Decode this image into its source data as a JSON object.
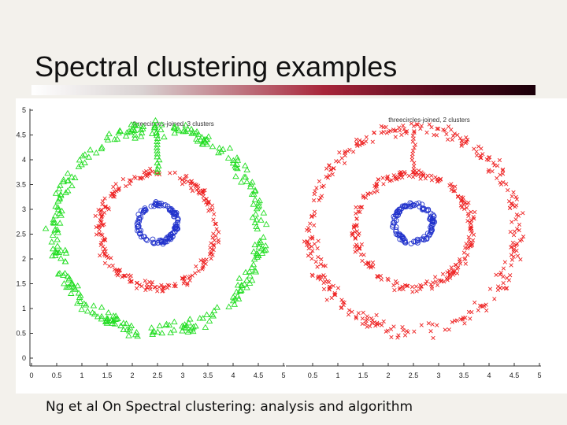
{
  "slide": {
    "title": "Spectral clustering examples",
    "caption": "Ng et al On Spectral clustering: analysis and algorithm"
  },
  "colors": {
    "green": "#22dd22",
    "red": "#ee2222",
    "blue": "#2233cc",
    "axis": "#333333"
  },
  "chart_data": [
    {
      "type": "scatter",
      "title": "threecircles-joined, 3 clusters",
      "xlim": [
        0,
        5
      ],
      "ylim": [
        0,
        5
      ],
      "x_ticks": [
        0,
        0.5,
        1,
        1.5,
        2,
        2.5,
        3,
        3.5,
        4,
        4.5,
        5
      ],
      "y_ticks": [
        0,
        0.5,
        1,
        1.5,
        2,
        2.5,
        3,
        3.5,
        4,
        4.5,
        5
      ],
      "x_tick_labels": [
        "0",
        "0.5",
        "1",
        "1.5",
        "2",
        "2.5",
        "3",
        "3.5",
        "4",
        "4.5",
        "5"
      ],
      "y_tick_labels": [
        "0",
        "0.5",
        "1",
        "1.5",
        "2",
        "2.5",
        "3",
        "3.5",
        "4",
        "4.5",
        "5"
      ],
      "series": [
        {
          "marker": "triangle",
          "color": "green",
          "shape": "ring",
          "center": [
            2.5,
            2.58
          ],
          "radius": 2.05,
          "points": 320
        },
        {
          "marker": "x",
          "color": "red",
          "shape": "ring",
          "center": [
            2.5,
            2.58
          ],
          "radius": 1.15,
          "points": 230
        },
        {
          "marker": "circle",
          "color": "blue",
          "shape": "ring",
          "center": [
            2.5,
            2.72
          ],
          "radius": 0.38,
          "points": 110
        },
        {
          "marker": "triangle",
          "color": "green",
          "shape": "bridge",
          "x": 2.5,
          "y_range": [
            3.75,
            4.55
          ],
          "points": 14
        }
      ]
    },
    {
      "type": "scatter",
      "title": "threecircles-joined, 2 clusters",
      "xlim": [
        0,
        5
      ],
      "ylim": [
        0,
        5
      ],
      "x_ticks": [
        0.5,
        1,
        1.5,
        2,
        2.5,
        3,
        3.5,
        4,
        4.5,
        5
      ],
      "x_tick_labels": [
        "0.5",
        "1",
        "1.5",
        "2",
        "2.5",
        "3",
        "3.5",
        "4",
        "4.5",
        "5"
      ],
      "series": [
        {
          "marker": "x",
          "color": "red",
          "shape": "ring",
          "center": [
            2.5,
            2.58
          ],
          "radius": 2.05,
          "points": 320
        },
        {
          "marker": "x",
          "color": "red",
          "shape": "ring",
          "center": [
            2.5,
            2.58
          ],
          "radius": 1.15,
          "points": 230
        },
        {
          "marker": "circle",
          "color": "blue",
          "shape": "ring",
          "center": [
            2.5,
            2.72
          ],
          "radius": 0.38,
          "points": 110
        },
        {
          "marker": "x",
          "color": "red",
          "shape": "bridge",
          "x": 2.5,
          "y_range": [
            3.75,
            4.55
          ],
          "points": 14
        }
      ]
    }
  ]
}
